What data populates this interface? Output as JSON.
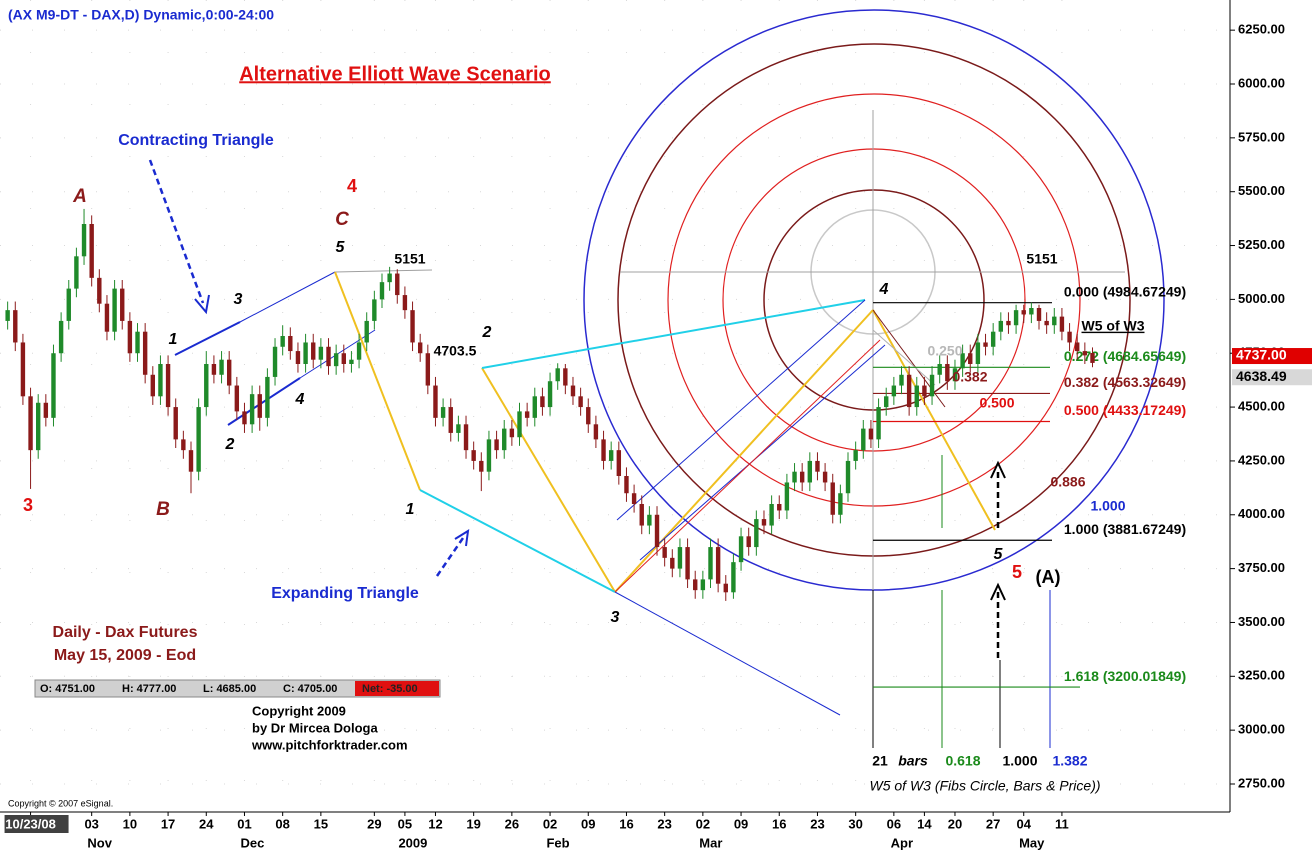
{
  "chart_data": {
    "type": "candlestick",
    "title": "(AX M9-DT - DAX,D) Dynamic,0:00-24:00",
    "up_color": "#1f8a2a",
    "down_color": "#8b1a1a",
    "grid": true,
    "xlim": [
      -1,
      160
    ],
    "ylim": [
      2620,
      6390
    ],
    "yticks": [
      {
        "value": 2750,
        "label": "2750.00"
      },
      {
        "value": 3000,
        "label": "3000.00"
      },
      {
        "value": 3250,
        "label": "3250.00"
      },
      {
        "value": 3500,
        "label": "3500.00"
      },
      {
        "value": 3750,
        "label": "3750.00"
      },
      {
        "value": 4000,
        "label": "4000.00"
      },
      {
        "value": 4250,
        "label": "4250.00"
      },
      {
        "value": 4500,
        "label": "4500.00"
      },
      {
        "value": 4750,
        "label": "4750.00"
      },
      {
        "value": 5000,
        "label": "5000.00"
      },
      {
        "value": 5250,
        "label": "5250.00"
      },
      {
        "value": 5500,
        "label": "5500.00"
      },
      {
        "value": 5750,
        "label": "5750.00"
      },
      {
        "value": 6000,
        "label": "6000.00"
      },
      {
        "value": 6250,
        "label": "6250.00"
      }
    ],
    "xticks": [
      {
        "value": 3,
        "label": "10/23/08"
      },
      {
        "value": 11,
        "label": "03"
      },
      {
        "value": 16,
        "label": "10"
      },
      {
        "value": 21,
        "label": "17"
      },
      {
        "value": 26,
        "label": "24"
      },
      {
        "value": 31,
        "label": "01"
      },
      {
        "value": 36,
        "label": "08"
      },
      {
        "value": 41,
        "label": "15"
      },
      {
        "value": 48,
        "label": "29"
      },
      {
        "value": 52,
        "label": "05"
      },
      {
        "value": 56,
        "label": "12"
      },
      {
        "value": 61,
        "label": "19"
      },
      {
        "value": 66,
        "label": "26"
      },
      {
        "value": 71,
        "label": "02"
      },
      {
        "value": 76,
        "label": "09"
      },
      {
        "value": 81,
        "label": "16"
      },
      {
        "value": 86,
        "label": "23"
      },
      {
        "value": 91,
        "label": "02"
      },
      {
        "value": 96,
        "label": "09"
      },
      {
        "value": 101,
        "label": "16"
      },
      {
        "value": 106,
        "label": "23"
      },
      {
        "value": 111,
        "label": "30"
      },
      {
        "value": 116,
        "label": "06"
      },
      {
        "value": 120,
        "label": "14"
      },
      {
        "value": 124,
        "label": "20"
      },
      {
        "value": 129,
        "label": "27"
      },
      {
        "value": 133,
        "label": "04"
      },
      {
        "value": 138,
        "label": "11"
      }
    ],
    "month_labels": [
      {
        "value": 11,
        "label": "Nov"
      },
      {
        "value": 31,
        "label": "Dec"
      },
      {
        "value": 52,
        "label": "2009"
      },
      {
        "value": 71,
        "label": "Feb"
      },
      {
        "value": 91,
        "label": "Mar"
      },
      {
        "value": 116,
        "label": "Apr"
      },
      {
        "value": 133,
        "label": "May"
      }
    ],
    "open": [
      4900,
      4950,
      4800,
      4550,
      4300,
      4520,
      4450,
      4750,
      4900,
      5050,
      5200,
      5350,
      5100,
      4980,
      4850,
      5050,
      4900,
      4750,
      4850,
      4650,
      4550,
      4700,
      4500,
      4350,
      4300,
      4200,
      4500,
      4700,
      4650,
      4720,
      4600,
      4480,
      4420,
      4560,
      4450,
      4640,
      4780,
      4830,
      4760,
      4700,
      4800,
      4720,
      4780,
      4690,
      4750,
      4700,
      4720,
      4800,
      4900,
      5000,
      5080,
      5120,
      5020,
      4950,
      4800,
      4750,
      4600,
      4450,
      4500,
      4380,
      4420,
      4300,
      4250,
      4200,
      4350,
      4300,
      4400,
      4360,
      4480,
      4450,
      4550,
      4500,
      4620,
      4680,
      4600,
      4550,
      4500,
      4420,
      4350,
      4250,
      4300,
      4180,
      4100,
      4050,
      3950,
      4000,
      3850,
      3800,
      3750,
      3850,
      3700,
      3650,
      3700,
      3850,
      3680,
      3640,
      3780,
      3900,
      3850,
      3980,
      3950,
      4050,
      4020,
      4150,
      4200,
      4150,
      4250,
      4200,
      4150,
      4000,
      4100,
      4250,
      4300,
      4400,
      4350,
      4500,
      4550,
      4600,
      4650,
      4500,
      4600,
      4550,
      4650,
      4700,
      4620,
      4680,
      4750,
      4700,
      4800,
      4780,
      4850,
      4900,
      4880,
      4950,
      4930,
      4960,
      4900,
      4880,
      4920,
      4850,
      4800,
      4760,
      4751
    ],
    "high": [
      4990,
      4990,
      4840,
      4590,
      4560,
      4560,
      4790,
      4940,
      5090,
      5240,
      5420,
      5390,
      5140,
      5020,
      5090,
      5090,
      4940,
      4890,
      4890,
      4690,
      4740,
      4740,
      4540,
      4390,
      4340,
      4540,
      4760,
      4740,
      4760,
      4760,
      4640,
      4520,
      4600,
      4600,
      4680,
      4820,
      4880,
      4870,
      4800,
      4840,
      4840,
      4820,
      4820,
      4790,
      4790,
      4760,
      4840,
      4940,
      5040,
      5120,
      5151,
      5140,
      5060,
      4990,
      4840,
      4790,
      4640,
      4540,
      4540,
      4460,
      4460,
      4340,
      4290,
      4390,
      4390,
      4440,
      4440,
      4520,
      4520,
      4590,
      4590,
      4660,
      4703.5,
      4700,
      4640,
      4590,
      4540,
      4460,
      4390,
      4340,
      4340,
      4220,
      4140,
      4090,
      4040,
      4040,
      3890,
      3840,
      3890,
      3890,
      3740,
      3740,
      3890,
      3890,
      3720,
      3820,
      3940,
      3940,
      4020,
      4020,
      4090,
      4090,
      4190,
      4240,
      4240,
      4290,
      4290,
      4240,
      4190,
      4140,
      4290,
      4340,
      4440,
      4440,
      4540,
      4590,
      4640,
      4690,
      4690,
      4640,
      4640,
      4690,
      4740,
      4740,
      4720,
      4790,
      4790,
      4840,
      4840,
      4890,
      4940,
      4940,
      4975,
      4975,
      4985,
      4975,
      4940,
      4960,
      4960,
      4890,
      4840,
      4800,
      4777
    ],
    "low": [
      4860,
      4760,
      4510,
      4120,
      4260,
      4410,
      4410,
      4710,
      4860,
      5010,
      5160,
      5060,
      4940,
      4810,
      4810,
      4860,
      4710,
      4710,
      4610,
      4510,
      4510,
      4460,
      4310,
      4260,
      4100,
      4160,
      4460,
      4610,
      4610,
      4560,
      4440,
      4380,
      4380,
      4390,
      4410,
      4600,
      4740,
      4720,
      4660,
      4660,
      4680,
      4680,
      4650,
      4650,
      4660,
      4660,
      4680,
      4760,
      4860,
      4960,
      5040,
      4980,
      4910,
      4760,
      4710,
      4560,
      4410,
      4410,
      4340,
      4340,
      4260,
      4210,
      4110,
      4160,
      4260,
      4260,
      4320,
      4320,
      4410,
      4410,
      4460,
      4460,
      4580,
      4560,
      4510,
      4460,
      4380,
      4310,
      4210,
      4210,
      4140,
      4060,
      4010,
      3910,
      3910,
      3810,
      3760,
      3710,
      3710,
      3660,
      3610,
      3610,
      3660,
      3640,
      3600,
      3610,
      3740,
      3810,
      3810,
      3910,
      3910,
      3980,
      3980,
      4110,
      4110,
      4110,
      4160,
      4110,
      3960,
      3960,
      4060,
      4210,
      4260,
      4310,
      4310,
      4460,
      4510,
      4560,
      4460,
      4460,
      4510,
      4510,
      4610,
      4580,
      4580,
      4640,
      4660,
      4660,
      4740,
      4740,
      4810,
      4840,
      4840,
      4890,
      4890,
      4860,
      4840,
      4840,
      4810,
      4760,
      4720,
      4700,
      4685
    ],
    "close": [
      4950,
      4800,
      4550,
      4300,
      4520,
      4450,
      4750,
      4900,
      5050,
      5200,
      5350,
      5100,
      4980,
      4850,
      5050,
      4900,
      4750,
      4850,
      4650,
      4550,
      4700,
      4500,
      4350,
      4300,
      4200,
      4500,
      4700,
      4650,
      4720,
      4600,
      4480,
      4420,
      4560,
      4450,
      4640,
      4780,
      4830,
      4760,
      4700,
      4800,
      4720,
      4780,
      4690,
      4750,
      4700,
      4720,
      4800,
      4900,
      5000,
      5080,
      5120,
      5020,
      4950,
      4800,
      4750,
      4600,
      4450,
      4500,
      4380,
      4420,
      4300,
      4250,
      4200,
      4350,
      4300,
      4400,
      4360,
      4480,
      4450,
      4550,
      4500,
      4620,
      4680,
      4600,
      4550,
      4500,
      4420,
      4350,
      4250,
      4300,
      4180,
      4100,
      4050,
      3950,
      4000,
      3850,
      3800,
      3750,
      3850,
      3700,
      3650,
      3700,
      3850,
      3680,
      3640,
      3780,
      3900,
      3850,
      3980,
      3950,
      4050,
      4020,
      4150,
      4200,
      4150,
      4250,
      4200,
      4150,
      4000,
      4100,
      4250,
      4300,
      4400,
      4350,
      4500,
      4550,
      4600,
      4650,
      4500,
      4600,
      4550,
      4650,
      4700,
      4620,
      4680,
      4750,
      4700,
      4800,
      4780,
      4850,
      4900,
      4880,
      4950,
      4930,
      4960,
      4900,
      4880,
      4920,
      4850,
      4800,
      4760,
      4740,
      4705
    ],
    "fib_levels": [
      {
        "value": 4984.67249,
        "label": "0.000 (4984.67249)",
        "color": "#000000"
      },
      {
        "value": 4684.65649,
        "label": "0.272 (4684.65649)",
        "color": "#1a8a1a"
      },
      {
        "value": 4563.32649,
        "label": "0.382 (4563.32649)",
        "color": "#8b1a1a"
      },
      {
        "value": 4433.17249,
        "label": "0.500 (4433.17249)",
        "color": "#e01010"
      },
      {
        "value": 3881.67249,
        "label": "1.000 (3881.67249)",
        "color": "#000000"
      },
      {
        "value": 3200.01849,
        "label": "1.618 (3200.01849)",
        "color": "#1a8a1a"
      }
    ],
    "price_markers": [
      {
        "value": 4737,
        "label": "4737.00",
        "color": "#e00000",
        "text_color": "#ffffff"
      },
      {
        "value": 4638.49,
        "label": "4638.49",
        "color": "#d8d8d8",
        "text_color": "#000000"
      }
    ],
    "ohlc_box": [
      "O: 4751.00",
      "H: 4777.00",
      "L: 4685.00",
      "C: 4705.00",
      "Net: -35.00"
    ],
    "annotations": [
      "Alternative Elliott Wave Scenario",
      "Contracting Triangle",
      "Expanding Triangle",
      "A",
      "B",
      "3",
      "C",
      "4",
      "5",
      "5151",
      "1",
      "3",
      "2",
      "4",
      "1",
      "2",
      "4703.5",
      "3",
      "4",
      "5",
      "5",
      "(A)",
      "5151",
      "W5 of W3",
      "0.250",
      "0.382",
      "0.500",
      "0.886",
      "1.000",
      "21",
      "bars",
      "0.618",
      "1.000",
      "1.382",
      "W5 of W3 (Fibs Circle, Bars & Price))",
      "Daily - Dax Futures",
      "May 15, 2009 - Eod",
      "Copyright 2009",
      "by Dr Mircea Dologa",
      "www.pitchforktrader.com",
      "Copyright © 2007 eSignal."
    ]
  }
}
